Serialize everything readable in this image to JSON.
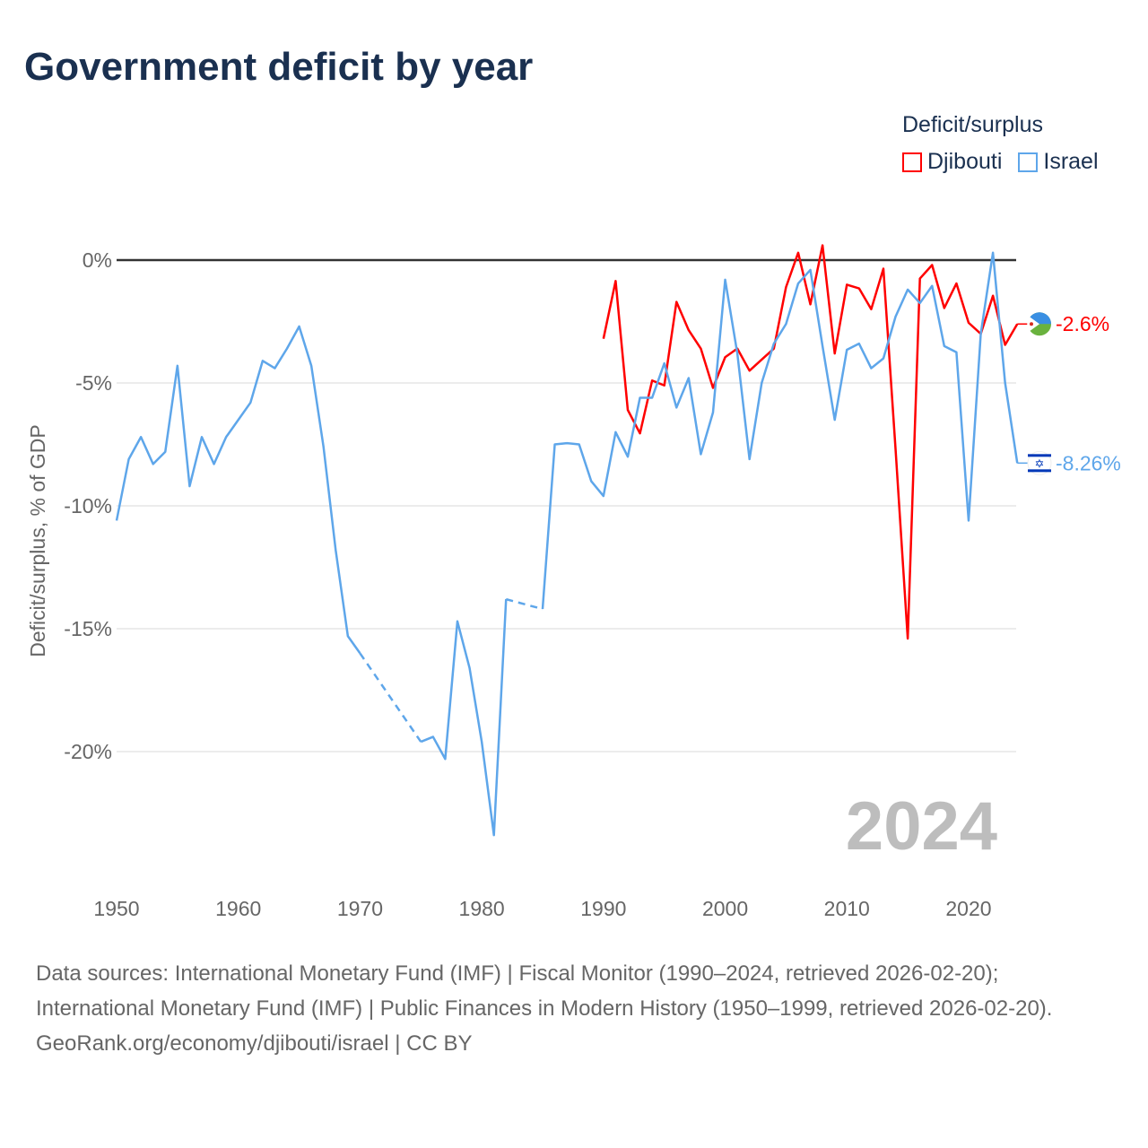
{
  "title": "Government deficit by year",
  "legend": {
    "title": "Deficit/surplus",
    "items": [
      {
        "label": "Djibouti",
        "color": "#ff0000"
      },
      {
        "label": "Israel",
        "color": "#5ea6ea"
      }
    ]
  },
  "year_watermark": "2024",
  "chart_data": {
    "type": "line",
    "title": "Government deficit by year",
    "xlabel": "",
    "ylabel": "Deficit/surplus, % of GDP",
    "xlim": [
      1950,
      2024
    ],
    "ylim": [
      -25,
      0
    ],
    "x_ticks": [
      "1950",
      "1960",
      "1970",
      "1980",
      "1990",
      "2000",
      "2010",
      "2020"
    ],
    "y_ticks": [
      {
        "v": 0,
        "label": "0%"
      },
      {
        "v": -5,
        "label": "-5%"
      },
      {
        "v": -10,
        "label": "-10%"
      },
      {
        "v": -15,
        "label": "-15%"
      },
      {
        "v": -20,
        "label": "-20%"
      }
    ],
    "grid": true,
    "legend_position": "top-right",
    "series": [
      {
        "name": "Djibouti",
        "color": "#ff0000",
        "end_label": "-2.6%",
        "start_year": 1990,
        "values": [
          -3.2,
          -0.85,
          -6.1,
          -7.05,
          -4.9,
          -5.1,
          -1.7,
          -2.85,
          -3.6,
          -5.2,
          -3.95,
          -3.6,
          -4.5,
          -4.05,
          -3.6,
          -1.1,
          0.3,
          -1.8,
          0.6,
          -3.8,
          -1.0,
          -1.15,
          -2.0,
          -0.35,
          -7.7,
          -15.4,
          -0.75,
          -0.2,
          -1.95,
          -0.95,
          -2.55,
          -3.0,
          -1.45,
          -3.45,
          -2.6
        ]
      },
      {
        "name": "Israel",
        "color": "#5ea6ea",
        "end_label": "-8.26%",
        "start_year": 1950,
        "values": [
          -10.6,
          -8.1,
          -7.2,
          -8.3,
          -7.8,
          -4.3,
          -9.2,
          -7.2,
          -8.3,
          -7.2,
          -6.5,
          -5.8,
          -4.1,
          -4.4,
          -3.6,
          -2.7,
          -4.3,
          -7.6,
          -11.8,
          -15.3,
          -16.0,
          null,
          null,
          null,
          null,
          -19.6,
          -19.4,
          -20.3,
          -14.7,
          -16.6,
          -19.6,
          -23.4,
          -13.8,
          null,
          null,
          -14.2,
          -7.5,
          -7.45,
          -7.5,
          -9.0,
          -9.6,
          -7.0,
          -8.0,
          -5.6,
          -5.6,
          -4.2,
          -6.0,
          -4.8,
          -7.9,
          -6.2,
          -0.8,
          -3.8,
          -8.1,
          -5.0,
          -3.4,
          -2.6,
          -0.95,
          -0.4,
          -3.5,
          -6.5,
          -3.65,
          -3.4,
          -4.4,
          -4.0,
          -2.3,
          -1.2,
          -1.75,
          -1.05,
          -3.5,
          -3.75,
          -10.6,
          -3.0,
          0.3,
          -5.0,
          -8.26
        ]
      }
    ]
  },
  "footer": {
    "sources": "Data sources: International Monetary Fund (IMF) | Fiscal Monitor (1990–2024, retrieved 2026-02-20); International Monetary Fund (IMF) | Public Finances in Modern History (1950–1999, retrieved 2026-02-20).",
    "credit": "GeoRank.org/economy/djibouti/israel | CC BY"
  }
}
